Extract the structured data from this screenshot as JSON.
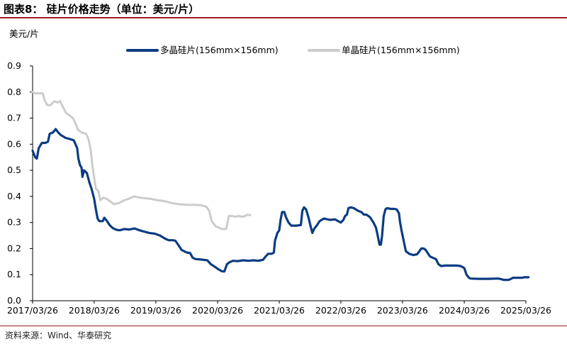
{
  "header": {
    "title": "图表8：   硅片价格走势（单位：美元/片）"
  },
  "footer": {
    "source": "资料来源：Wind、华泰研究"
  },
  "chart_data": {
    "type": "line",
    "ylabel": "美元/片",
    "ylim": [
      0,
      0.9
    ],
    "yticks": [
      "0.0",
      "0.1",
      "0.2",
      "0.3",
      "0.4",
      "0.5",
      "0.6",
      "0.7",
      "0.8",
      "0.9"
    ],
    "xticks": [
      "2017/03/26",
      "2018/03/26",
      "2019/03/26",
      "2020/03/26",
      "2021/03/26",
      "2022/03/26",
      "2023/03/26",
      "2024/03/26",
      "2025/03/26"
    ],
    "legend_position": "top",
    "grid": false,
    "series": [
      {
        "name": "多晶硅片(156mm×156mm)",
        "color": "#0b3c82",
        "points": [
          [
            "2017-03-26",
            0.575
          ],
          [
            "2017-04-10",
            0.55
          ],
          [
            "2017-04-20",
            0.545
          ],
          [
            "2017-05-01",
            0.585
          ],
          [
            "2017-05-20",
            0.605
          ],
          [
            "2017-06-10",
            0.605
          ],
          [
            "2017-06-25",
            0.61
          ],
          [
            "2017-07-05",
            0.64
          ],
          [
            "2017-07-25",
            0.645
          ],
          [
            "2017-08-10",
            0.658
          ],
          [
            "2017-08-25",
            0.645
          ],
          [
            "2017-09-10",
            0.635
          ],
          [
            "2017-10-05",
            0.625
          ],
          [
            "2017-11-01",
            0.62
          ],
          [
            "2017-11-25",
            0.615
          ],
          [
            "2017-12-05",
            0.6
          ],
          [
            "2017-12-15",
            0.585
          ],
          [
            "2017-12-22",
            0.545
          ],
          [
            "2018-01-01",
            0.52
          ],
          [
            "2018-01-10",
            0.51
          ],
          [
            "2018-01-15",
            0.475
          ],
          [
            "2018-01-25",
            0.5
          ],
          [
            "2018-02-10",
            0.49
          ],
          [
            "2018-02-25",
            0.455
          ],
          [
            "2018-03-10",
            0.43
          ],
          [
            "2018-03-26",
            0.39
          ],
          [
            "2018-04-05",
            0.35
          ],
          [
            "2018-04-15",
            0.315
          ],
          [
            "2018-04-25",
            0.305
          ],
          [
            "2018-05-15",
            0.305
          ],
          [
            "2018-05-25",
            0.318
          ],
          [
            "2018-06-10",
            0.305
          ],
          [
            "2018-06-25",
            0.29
          ],
          [
            "2018-07-15",
            0.278
          ],
          [
            "2018-08-05",
            0.272
          ],
          [
            "2018-08-25",
            0.27
          ],
          [
            "2018-09-20",
            0.275
          ],
          [
            "2018-10-20",
            0.273
          ],
          [
            "2018-11-20",
            0.277
          ],
          [
            "2018-12-20",
            0.27
          ],
          [
            "2019-01-15",
            0.265
          ],
          [
            "2019-02-15",
            0.26
          ],
          [
            "2019-03-20",
            0.257
          ],
          [
            "2019-04-20",
            0.25
          ],
          [
            "2019-05-20",
            0.238
          ],
          [
            "2019-06-10",
            0.232
          ],
          [
            "2019-07-05",
            0.232
          ],
          [
            "2019-07-20",
            0.23
          ],
          [
            "2019-08-05",
            0.215
          ],
          [
            "2019-08-25",
            0.195
          ],
          [
            "2019-09-25",
            0.185
          ],
          [
            "2019-10-15",
            0.183
          ],
          [
            "2019-10-30",
            0.165
          ],
          [
            "2019-11-15",
            0.16
          ],
          [
            "2019-12-20",
            0.158
          ],
          [
            "2020-01-25",
            0.155
          ],
          [
            "2020-02-15",
            0.14
          ],
          [
            "2020-03-10",
            0.13
          ],
          [
            "2020-04-01",
            0.12
          ],
          [
            "2020-04-20",
            0.113
          ],
          [
            "2020-05-05",
            0.112
          ],
          [
            "2020-05-20",
            0.14
          ],
          [
            "2020-06-05",
            0.148
          ],
          [
            "2020-06-25",
            0.153
          ],
          [
            "2020-07-25",
            0.152
          ],
          [
            "2020-08-25",
            0.155
          ],
          [
            "2020-09-25",
            0.153
          ],
          [
            "2020-10-25",
            0.155
          ],
          [
            "2020-11-20",
            0.153
          ],
          [
            "2020-12-05",
            0.155
          ],
          [
            "2020-12-20",
            0.157
          ],
          [
            "2021-01-05",
            0.17
          ],
          [
            "2021-01-20",
            0.18
          ],
          [
            "2021-02-10",
            0.18
          ],
          [
            "2021-02-22",
            0.185
          ],
          [
            "2021-03-01",
            0.23
          ],
          [
            "2021-03-15",
            0.26
          ],
          [
            "2021-03-26",
            0.27
          ],
          [
            "2021-04-03",
            0.31
          ],
          [
            "2021-04-12",
            0.34
          ],
          [
            "2021-04-25",
            0.34
          ],
          [
            "2021-05-05",
            0.32
          ],
          [
            "2021-05-20",
            0.3
          ],
          [
            "2021-06-05",
            0.288
          ],
          [
            "2021-07-05",
            0.288
          ],
          [
            "2021-08-01",
            0.29
          ],
          [
            "2021-08-10",
            0.345
          ],
          [
            "2021-08-20",
            0.358
          ],
          [
            "2021-09-01",
            0.35
          ],
          [
            "2021-09-15",
            0.32
          ],
          [
            "2021-09-28",
            0.285
          ],
          [
            "2021-10-08",
            0.26
          ],
          [
            "2021-10-18",
            0.275
          ],
          [
            "2021-11-05",
            0.29
          ],
          [
            "2021-11-20",
            0.305
          ],
          [
            "2021-12-15",
            0.315
          ],
          [
            "2022-01-20",
            0.31
          ],
          [
            "2022-02-20",
            0.312
          ],
          [
            "2022-03-10",
            0.305
          ],
          [
            "2022-03-26",
            0.3
          ],
          [
            "2022-04-10",
            0.31
          ],
          [
            "2022-04-20",
            0.325
          ],
          [
            "2022-05-01",
            0.33
          ],
          [
            "2022-05-10",
            0.355
          ],
          [
            "2022-05-25",
            0.358
          ],
          [
            "2022-06-10",
            0.355
          ],
          [
            "2022-07-05",
            0.345
          ],
          [
            "2022-07-25",
            0.34
          ],
          [
            "2022-08-10",
            0.33
          ],
          [
            "2022-08-25",
            0.33
          ],
          [
            "2022-09-15",
            0.32
          ],
          [
            "2022-10-05",
            0.3
          ],
          [
            "2022-10-20",
            0.28
          ],
          [
            "2022-10-30",
            0.25
          ],
          [
            "2022-11-10",
            0.215
          ],
          [
            "2022-11-18",
            0.215
          ],
          [
            "2022-11-25",
            0.25
          ],
          [
            "2022-12-05",
            0.325
          ],
          [
            "2022-12-15",
            0.35
          ],
          [
            "2022-12-25",
            0.355
          ],
          [
            "2023-01-15",
            0.352
          ],
          [
            "2023-02-05",
            0.352
          ],
          [
            "2023-02-20",
            0.35
          ],
          [
            "2023-03-05",
            0.335
          ],
          [
            "2023-03-12",
            0.3
          ],
          [
            "2023-03-20",
            0.27
          ],
          [
            "2023-04-05",
            0.22
          ],
          [
            "2023-04-15",
            0.19
          ],
          [
            "2023-05-05",
            0.18
          ],
          [
            "2023-05-30",
            0.175
          ],
          [
            "2023-06-20",
            0.178
          ],
          [
            "2023-07-05",
            0.19
          ],
          [
            "2023-07-15",
            0.2
          ],
          [
            "2023-07-30",
            0.2
          ],
          [
            "2023-08-10",
            0.195
          ],
          [
            "2023-08-25",
            0.18
          ],
          [
            "2023-09-05",
            0.17
          ],
          [
            "2023-09-20",
            0.165
          ],
          [
            "2023-10-10",
            0.16
          ],
          [
            "2023-10-25",
            0.14
          ],
          [
            "2023-11-10",
            0.133
          ],
          [
            "2023-12-05",
            0.135
          ],
          [
            "2024-01-10",
            0.135
          ],
          [
            "2024-02-10",
            0.135
          ],
          [
            "2024-03-05",
            0.133
          ],
          [
            "2024-03-26",
            0.125
          ],
          [
            "2024-04-08",
            0.1
          ],
          [
            "2024-04-20",
            0.09
          ],
          [
            "2024-05-01",
            0.085
          ],
          [
            "2024-06-15",
            0.084
          ],
          [
            "2024-08-15",
            0.084
          ],
          [
            "2024-10-15",
            0.085
          ],
          [
            "2024-11-15",
            0.08
          ],
          [
            "2024-12-15",
            0.08
          ],
          [
            "2025-01-10",
            0.088
          ],
          [
            "2025-03-05",
            0.088
          ],
          [
            "2025-03-15",
            0.09
          ],
          [
            "2025-04-10",
            0.09
          ]
        ]
      },
      {
        "name": "单晶硅片(156mm×156mm)",
        "color": "#cccccc",
        "points": [
          [
            "2017-03-26",
            0.8
          ],
          [
            "2017-04-10",
            0.795
          ],
          [
            "2017-05-10",
            0.795
          ],
          [
            "2017-05-25",
            0.795
          ],
          [
            "2017-06-05",
            0.77
          ],
          [
            "2017-06-20",
            0.75
          ],
          [
            "2017-07-10",
            0.75
          ],
          [
            "2017-07-25",
            0.76
          ],
          [
            "2017-08-05",
            0.765
          ],
          [
            "2017-08-20",
            0.76
          ],
          [
            "2017-09-05",
            0.765
          ],
          [
            "2017-09-20",
            0.745
          ],
          [
            "2017-10-10",
            0.72
          ],
          [
            "2017-11-01",
            0.71
          ],
          [
            "2017-11-20",
            0.7
          ],
          [
            "2017-12-05",
            0.68
          ],
          [
            "2017-12-20",
            0.655
          ],
          [
            "2018-01-10",
            0.645
          ],
          [
            "2018-02-05",
            0.64
          ],
          [
            "2018-02-20",
            0.62
          ],
          [
            "2018-03-05",
            0.58
          ],
          [
            "2018-03-15",
            0.52
          ],
          [
            "2018-03-26",
            0.47
          ],
          [
            "2018-04-05",
            0.43
          ],
          [
            "2018-04-20",
            0.42
          ],
          [
            "2018-05-01",
            0.385
          ],
          [
            "2018-05-20",
            0.395
          ],
          [
            "2018-06-10",
            0.39
          ],
          [
            "2018-07-01",
            0.38
          ],
          [
            "2018-07-20",
            0.37
          ],
          [
            "2018-08-20",
            0.375
          ],
          [
            "2018-09-20",
            0.385
          ],
          [
            "2018-10-20",
            0.392
          ],
          [
            "2018-11-20",
            0.4
          ],
          [
            "2018-12-20",
            0.395
          ],
          [
            "2019-01-25",
            0.393
          ],
          [
            "2019-03-01",
            0.39
          ],
          [
            "2019-04-05",
            0.385
          ],
          [
            "2019-05-15",
            0.382
          ],
          [
            "2019-06-25",
            0.375
          ],
          [
            "2019-08-10",
            0.37
          ],
          [
            "2019-09-25",
            0.368
          ],
          [
            "2019-11-10",
            0.368
          ],
          [
            "2019-12-20",
            0.366
          ],
          [
            "2020-01-20",
            0.36
          ],
          [
            "2020-02-05",
            0.345
          ],
          [
            "2020-02-20",
            0.305
          ],
          [
            "2020-03-15",
            0.285
          ],
          [
            "2020-04-05",
            0.28
          ],
          [
            "2020-04-20",
            0.275
          ],
          [
            "2020-05-15",
            0.275
          ],
          [
            "2020-06-01",
            0.325
          ],
          [
            "2020-06-20",
            0.325
          ],
          [
            "2020-07-10",
            0.322
          ],
          [
            "2020-07-30",
            0.325
          ],
          [
            "2020-08-20",
            0.322
          ],
          [
            "2020-09-05",
            0.325
          ],
          [
            "2020-09-20",
            0.33
          ],
          [
            "2020-10-05",
            0.328
          ]
        ]
      }
    ]
  }
}
